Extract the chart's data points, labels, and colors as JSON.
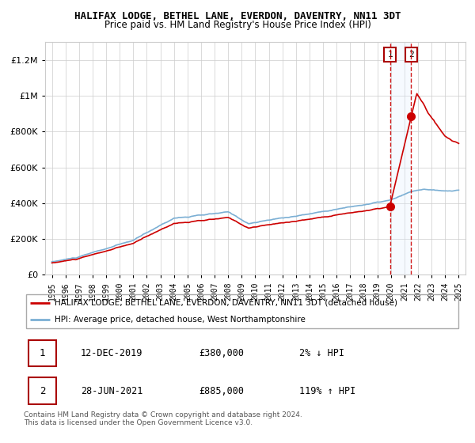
{
  "title": "HALIFAX LODGE, BETHEL LANE, EVERDON, DAVENTRY, NN11 3DT",
  "subtitle": "Price paid vs. HM Land Registry's House Price Index (HPI)",
  "legend_line1": "HALIFAX LODGE, BETHEL LANE, EVERDON, DAVENTRY, NN11 3DT (detached house)",
  "legend_line2": "HPI: Average price, detached house, West Northamptonshire",
  "footer": "Contains HM Land Registry data © Crown copyright and database right 2024.\nThis data is licensed under the Open Government Licence v3.0.",
  "sale1_date": "12-DEC-2019",
  "sale1_price": 380000,
  "sale1_pct": "2%",
  "sale1_dir": "↓",
  "sale2_date": "28-JUN-2021",
  "sale2_price": 885000,
  "sale2_pct": "119%",
  "sale2_dir": "↑",
  "sale1_x": 2019.94,
  "sale2_x": 2021.49,
  "hpi_color": "#7bafd4",
  "price_color": "#cc0000",
  "shade_color": "#ddeeff",
  "grid_color": "#cccccc",
  "bg_color": "#ffffff",
  "ylim_max": 1300000,
  "xlim_start": 1994.5,
  "xlim_end": 2025.5,
  "yticks": [
    0,
    200000,
    400000,
    600000,
    800000,
    1000000,
    1200000
  ]
}
